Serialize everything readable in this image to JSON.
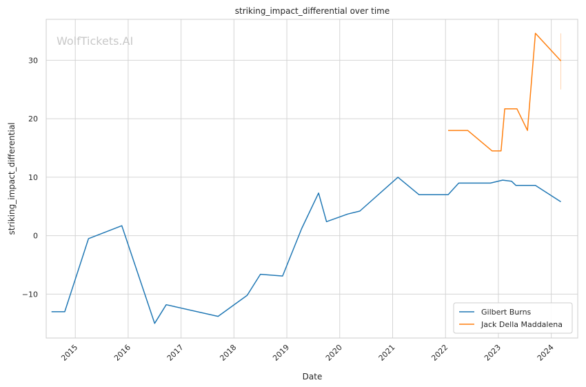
{
  "chart_data": {
    "type": "line",
    "title": "striking_impact_differential over time",
    "xlabel": "Date",
    "ylabel": "striking_impact_differential",
    "watermark": "WolfTickets.AI",
    "xlim": [
      2014.45,
      2024.5
    ],
    "ylim": [
      -17.5,
      37
    ],
    "x_ticks": [
      2015,
      2016,
      2017,
      2018,
      2019,
      2020,
      2021,
      2022,
      2023,
      2024
    ],
    "x_tick_labels": [
      "2015",
      "2016",
      "2017",
      "2018",
      "2019",
      "2020",
      "2021",
      "2022",
      "2023",
      "2024"
    ],
    "y_ticks": [
      -10,
      0,
      10,
      20,
      30
    ],
    "y_tick_labels": [
      "−10",
      "0",
      "10",
      "20",
      "30"
    ],
    "grid": true,
    "legend_position": "bottom-right",
    "series": [
      {
        "name": "Gilbert Burns",
        "color": "#1f77b4",
        "points": [
          [
            2014.55,
            -13
          ],
          [
            2014.8,
            -13
          ],
          [
            2015.25,
            -0.5
          ],
          [
            2015.88,
            1.7
          ],
          [
            2016.5,
            -15
          ],
          [
            2016.72,
            -11.8
          ],
          [
            2017.7,
            -13.8
          ],
          [
            2018.25,
            -10.2
          ],
          [
            2018.5,
            -6.6
          ],
          [
            2018.92,
            -6.9
          ],
          [
            2019.28,
            1.2
          ],
          [
            2019.6,
            7.3
          ],
          [
            2019.75,
            2.4
          ],
          [
            2020.15,
            3.7
          ],
          [
            2020.38,
            4.2
          ],
          [
            2021.1,
            10
          ],
          [
            2021.5,
            7
          ],
          [
            2022.05,
            7
          ],
          [
            2022.25,
            9
          ],
          [
            2022.85,
            9
          ],
          [
            2023.08,
            9.5
          ],
          [
            2023.25,
            9.3
          ],
          [
            2023.33,
            8.6
          ],
          [
            2023.7,
            8.6
          ],
          [
            2024.18,
            5.8
          ]
        ]
      },
      {
        "name": "Jack Della Maddalena",
        "color": "#ff7f0e",
        "points": [
          [
            2022.05,
            18
          ],
          [
            2022.42,
            18
          ],
          [
            2022.88,
            14.5
          ],
          [
            2023.05,
            14.5
          ],
          [
            2023.12,
            21.7
          ],
          [
            2023.35,
            21.7
          ],
          [
            2023.55,
            18
          ],
          [
            2023.7,
            34.6
          ],
          [
            2024.18,
            29.9
          ]
        ]
      }
    ],
    "annotations": [
      {
        "type": "vertical-segment",
        "x": 2024.18,
        "y_range": [
          25,
          34.6
        ],
        "color": "#ffd4b0"
      }
    ]
  }
}
